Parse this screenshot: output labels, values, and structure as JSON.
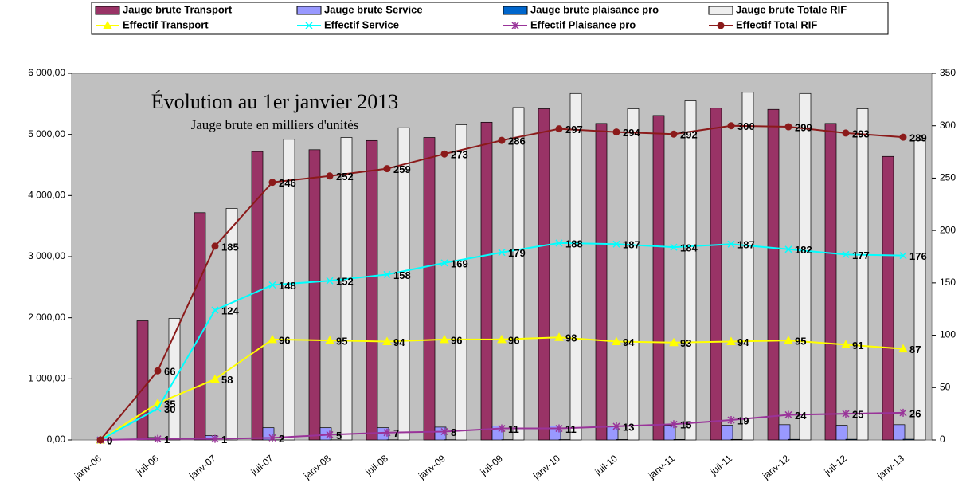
{
  "chart_data": {
    "type": "bar_line",
    "title": "Évolution au 1er janvier 2013",
    "subtitle": "Jauge brute en milliers d'unités",
    "categories": [
      "janv-06",
      "juil-06",
      "janv-07",
      "juil-07",
      "janv-08",
      "juil-08",
      "janv-09",
      "juil-09",
      "janv-10",
      "juil-10",
      "janv-11",
      "juil-11",
      "janv-12",
      "juil-12",
      "janv-13"
    ],
    "series": [
      {
        "name": "Jauge brute Transport",
        "type": "bar",
        "color": "#993366",
        "values": [
          0,
          1950,
          3720,
          4720,
          4750,
          4900,
          4950,
          5200,
          5420,
          5180,
          5310,
          5430,
          5410,
          5180,
          4640
        ]
      },
      {
        "name": "Jauge brute Service",
        "type": "bar",
        "color": "#9999ff",
        "values": [
          0,
          40,
          70,
          200,
          200,
          200,
          210,
          230,
          230,
          230,
          240,
          240,
          250,
          240,
          250
        ]
      },
      {
        "name": "Jauge brute plaisance pro",
        "type": "bar",
        "color": "#0066cc",
        "values": [
          0,
          0,
          0,
          1,
          2,
          3,
          4,
          5,
          6,
          7,
          8,
          9,
          10,
          11,
          12
        ]
      },
      {
        "name": "Jauge brute Totale RIF",
        "type": "bar",
        "color": "#eeeeee",
        "values": [
          0,
          1990,
          3790,
          4920,
          4950,
          5110,
          5160,
          5440,
          5670,
          5420,
          5550,
          5690,
          5670,
          5420,
          4900
        ]
      },
      {
        "name": "Effectif Transport",
        "type": "line",
        "axis": "y2",
        "marker": "triangle",
        "color": "#ffff00",
        "values": [
          0,
          35,
          58,
          96,
          95,
          94,
          96,
          96,
          98,
          94,
          93,
          94,
          95,
          91,
          87
        ]
      },
      {
        "name": "Effectif Service",
        "type": "line",
        "axis": "y2",
        "marker": "x",
        "color": "#00ffff",
        "values": [
          0,
          30,
          124,
          148,
          152,
          158,
          169,
          179,
          188,
          187,
          184,
          187,
          182,
          177,
          176
        ]
      },
      {
        "name": "Effectif Plaisance pro",
        "type": "line",
        "axis": "y2",
        "marker": "star",
        "color": "#993399",
        "values": [
          0,
          1,
          1,
          2,
          5,
          7,
          8,
          11,
          11,
          13,
          15,
          19,
          24,
          25,
          26
        ]
      },
      {
        "name": "Effectif Total RIF",
        "type": "line",
        "axis": "y2",
        "marker": "circle",
        "color": "#8b1a1a",
        "values": [
          0,
          66,
          185,
          246,
          252,
          259,
          273,
          286,
          297,
          294,
          292,
          300,
          299,
          293,
          289
        ]
      }
    ],
    "ylim": [
      0,
      6000
    ],
    "yticks": [
      {
        "value": 0,
        "label": "0,00"
      },
      {
        "value": 1000,
        "label": "1 000,00"
      },
      {
        "value": 2000,
        "label": "2 000,00"
      },
      {
        "value": 3000,
        "label": "3 000,00"
      },
      {
        "value": 4000,
        "label": "4 000,00"
      },
      {
        "value": 5000,
        "label": "5 000,00"
      },
      {
        "value": 6000,
        "label": "6 000,00"
      }
    ],
    "y2lim": [
      0,
      350
    ],
    "y2ticks": [
      0,
      50,
      100,
      150,
      200,
      250,
      300,
      350
    ],
    "legend": "top"
  }
}
